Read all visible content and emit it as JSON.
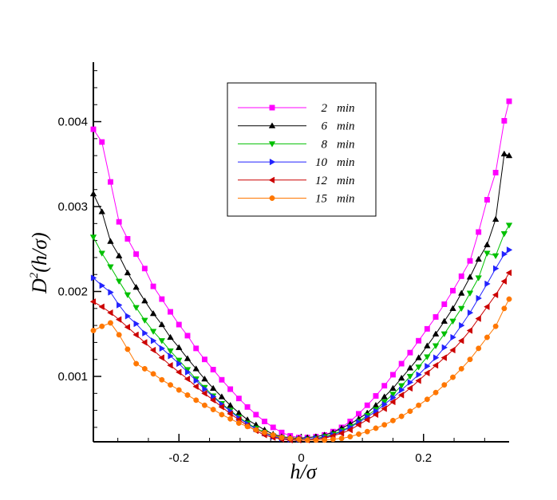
{
  "chart_data": {
    "type": "line",
    "title": "",
    "xlabel": "h/σ",
    "ylabel": "D²(h/σ)",
    "ylabel_parts": {
      "main": "D",
      "sup": "2",
      "arg": "(h/σ)"
    },
    "xlim": [
      -0.34,
      0.34
    ],
    "ylim": [
      0.00023,
      0.0047
    ],
    "xticks": [
      -0.2,
      0,
      0.2
    ],
    "xtick_labels": [
      "-0.2",
      "0",
      "0.2"
    ],
    "yticks": [
      0.001,
      0.002,
      0.003,
      0.004
    ],
    "ytick_labels": [
      "0.001",
      "0.002",
      "0.003",
      "0.004"
    ],
    "grid": false,
    "legend_position": "top-center",
    "x": [
      -0.34,
      -0.326,
      -0.312,
      -0.298,
      -0.284,
      -0.27,
      -0.256,
      -0.242,
      -0.228,
      -0.214,
      -0.2,
      -0.186,
      -0.172,
      -0.158,
      -0.144,
      -0.13,
      -0.116,
      -0.102,
      -0.088,
      -0.074,
      -0.06,
      -0.046,
      -0.032,
      -0.018,
      -0.004,
      0.01,
      0.024,
      0.038,
      0.052,
      0.066,
      0.08,
      0.094,
      0.108,
      0.122,
      0.136,
      0.15,
      0.164,
      0.178,
      0.192,
      0.206,
      0.22,
      0.234,
      0.248,
      0.262,
      0.276,
      0.29,
      0.304,
      0.318,
      0.332,
      0.34
    ],
    "series": [
      {
        "name": "2 min",
        "color": "#ff00ff",
        "marker": "square",
        "values": [
          0.00391,
          0.00376,
          0.00329,
          0.00282,
          0.00262,
          0.00244,
          0.00227,
          0.00206,
          0.00191,
          0.00176,
          0.00161,
          0.00148,
          0.00133,
          0.0012,
          0.00108,
          0.00096,
          0.00085,
          0.00074,
          0.00064,
          0.00055,
          0.00047,
          0.0004,
          0.00034,
          0.0003,
          0.00028,
          0.00028,
          0.00029,
          0.00031,
          0.00035,
          0.0004,
          0.00047,
          0.00056,
          0.00066,
          0.00077,
          0.00089,
          0.00102,
          0.00115,
          0.00128,
          0.00142,
          0.00156,
          0.0017,
          0.00185,
          0.00201,
          0.00218,
          0.00236,
          0.0027,
          0.00308,
          0.0034,
          0.00401,
          0.00424
        ]
      },
      {
        "name": "6 min",
        "color": "#000000",
        "marker": "triangle-up",
        "values": [
          0.00315,
          0.00294,
          0.00259,
          0.00242,
          0.00222,
          0.00205,
          0.00189,
          0.00174,
          0.00161,
          0.00146,
          0.00134,
          0.00121,
          0.00109,
          0.00097,
          0.00086,
          0.00076,
          0.00066,
          0.00057,
          0.00049,
          0.00043,
          0.00037,
          0.00032,
          0.00029,
          0.00028,
          0.00027,
          0.00028,
          0.00029,
          0.00031,
          0.00034,
          0.00039,
          0.00044,
          0.0005,
          0.00057,
          0.00066,
          0.00076,
          0.00086,
          0.00098,
          0.0011,
          0.00122,
          0.00136,
          0.0015,
          0.00165,
          0.0018,
          0.00198,
          0.00217,
          0.00238,
          0.00255,
          0.00285,
          0.00362,
          0.0036
        ]
      },
      {
        "name": "8 min",
        "color": "#00c000",
        "marker": "triangle-down",
        "values": [
          0.00264,
          0.00245,
          0.00229,
          0.00212,
          0.00196,
          0.00181,
          0.00166,
          0.00153,
          0.00142,
          0.0013,
          0.00119,
          0.00108,
          0.00097,
          0.00087,
          0.00077,
          0.00068,
          0.0006,
          0.00052,
          0.00045,
          0.00039,
          0.00034,
          0.0003,
          0.00028,
          0.00026,
          0.00026,
          0.00026,
          0.00027,
          0.00029,
          0.00032,
          0.00036,
          0.00041,
          0.00047,
          0.00054,
          0.00061,
          0.0007,
          0.00079,
          0.00089,
          0.001,
          0.00111,
          0.00123,
          0.00136,
          0.0015,
          0.00165,
          0.0018,
          0.00198,
          0.00216,
          0.00245,
          0.00242,
          0.00268,
          0.00278
        ]
      },
      {
        "name": "10 min",
        "color": "#2222ff",
        "marker": "triangle-right",
        "values": [
          0.00216,
          0.00207,
          0.00199,
          0.00184,
          0.00171,
          0.00162,
          0.00151,
          0.00142,
          0.00133,
          0.00124,
          0.00115,
          0.00105,
          0.00095,
          0.00085,
          0.00076,
          0.00067,
          0.00059,
          0.00051,
          0.00044,
          0.00038,
          0.00033,
          0.00029,
          0.00027,
          0.00026,
          0.00026,
          0.00026,
          0.00027,
          0.00028,
          0.00031,
          0.00035,
          0.0004,
          0.00046,
          0.00052,
          0.00059,
          0.00067,
          0.00075,
          0.00084,
          0.00093,
          0.00102,
          0.00112,
          0.00122,
          0.00134,
          0.00146,
          0.0016,
          0.00175,
          0.00192,
          0.00209,
          0.00227,
          0.00244,
          0.00249
        ]
      },
      {
        "name": "12 min",
        "color": "#cc0000",
        "marker": "triangle-left",
        "values": [
          0.00188,
          0.00182,
          0.00175,
          0.00167,
          0.00158,
          0.00149,
          0.0014,
          0.00131,
          0.00122,
          0.00113,
          0.00105,
          0.00097,
          0.00088,
          0.0008,
          0.00072,
          0.00064,
          0.00056,
          0.00049,
          0.00042,
          0.00036,
          0.00031,
          0.00028,
          0.00026,
          0.00025,
          0.00025,
          0.00025,
          0.00026,
          0.00027,
          0.0003,
          0.00033,
          0.00037,
          0.00043,
          0.00049,
          0.00055,
          0.00062,
          0.0007,
          0.00078,
          0.00086,
          0.00095,
          0.00104,
          0.00113,
          0.00122,
          0.00131,
          0.00142,
          0.00154,
          0.00168,
          0.00182,
          0.00196,
          0.00212,
          0.00222
        ]
      },
      {
        "name": "15 min",
        "color": "#ff7700",
        "marker": "circle",
        "values": [
          0.00154,
          0.00159,
          0.00163,
          0.00149,
          0.00132,
          0.00115,
          0.00109,
          0.00103,
          0.00096,
          0.0009,
          0.00084,
          0.00078,
          0.00072,
          0.00066,
          0.00061,
          0.00055,
          0.0005,
          0.00045,
          0.00041,
          0.00037,
          0.00034,
          0.00031,
          0.00028,
          0.00027,
          0.00026,
          0.00025,
          0.00025,
          0.00025,
          0.00026,
          0.00027,
          0.00029,
          0.00032,
          0.00035,
          0.00039,
          0.00043,
          0.00048,
          0.00053,
          0.00059,
          0.00066,
          0.00073,
          0.00081,
          0.0009,
          0.00099,
          0.00109,
          0.0012,
          0.00133,
          0.00146,
          0.00159,
          0.0018,
          0.00191
        ]
      }
    ]
  }
}
